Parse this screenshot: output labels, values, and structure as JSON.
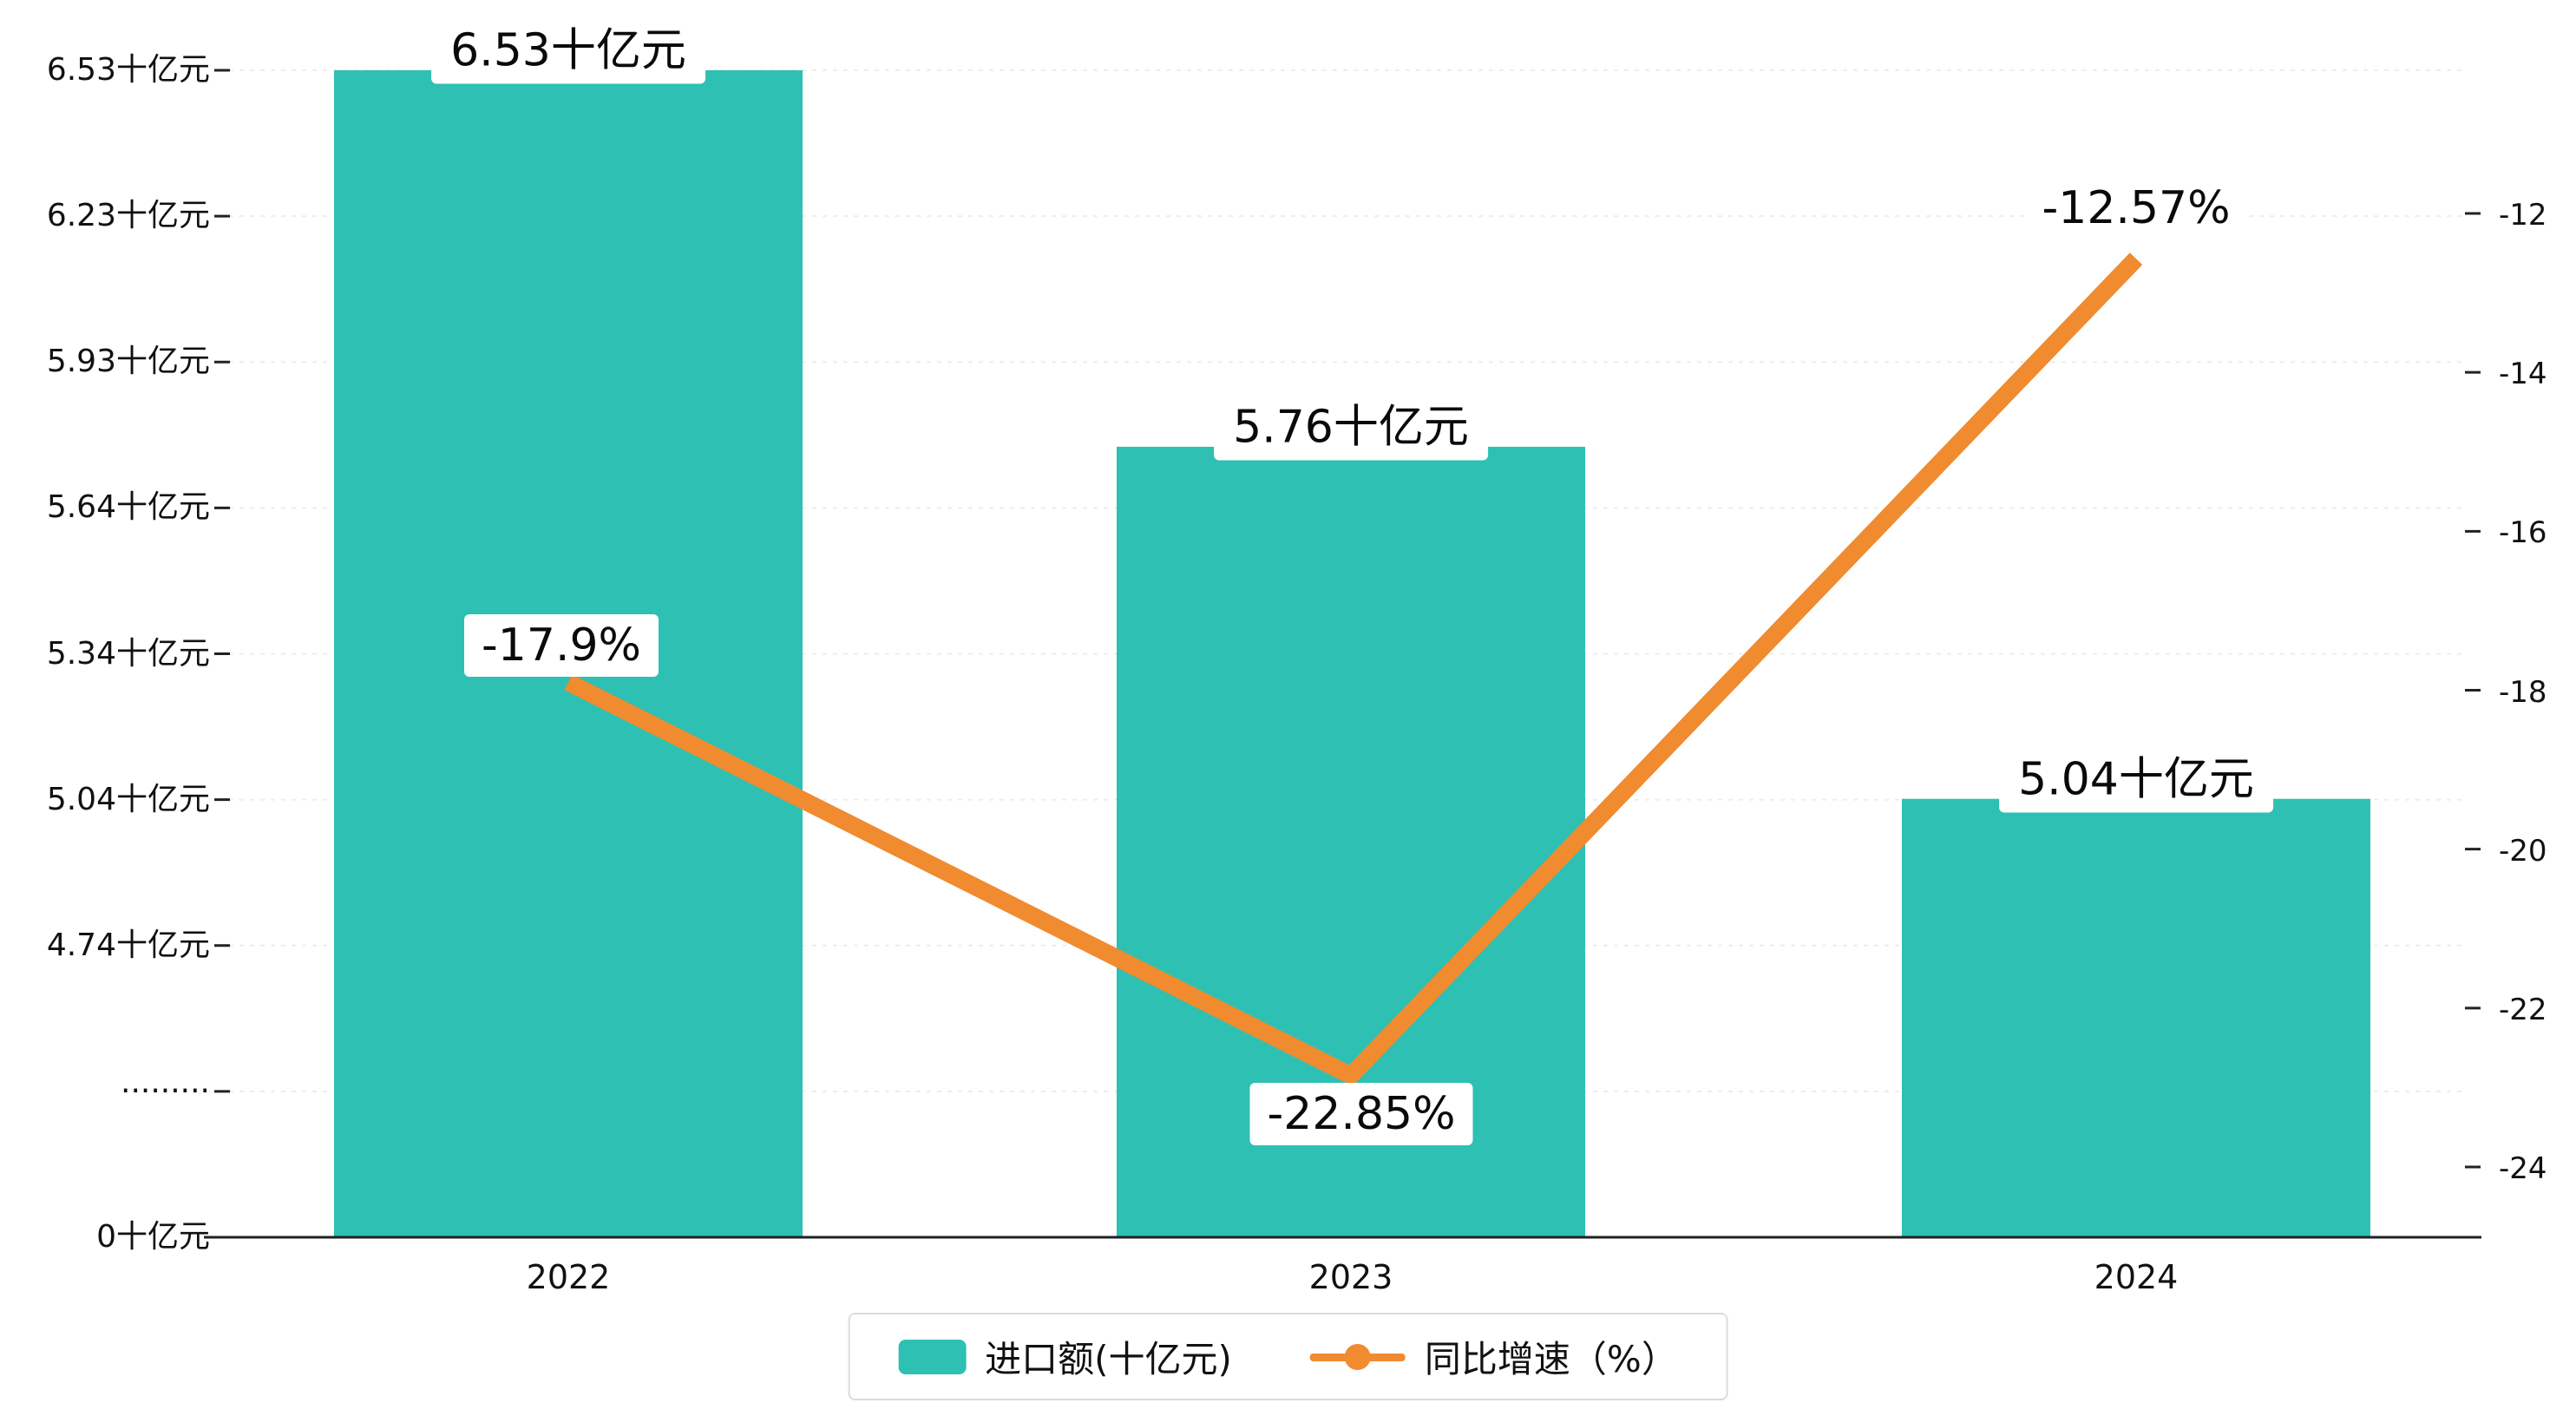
{
  "chart_data": {
    "type": "bar",
    "combo": "bar+line dual-axis",
    "categories": [
      "2022",
      "2023",
      "2024"
    ],
    "series": [
      {
        "name": "进口额(十亿元)",
        "type": "bar",
        "axis": "left",
        "unit": "十亿元",
        "values": [
          6.53,
          5.76,
          5.04
        ],
        "labels": [
          "6.53十亿元",
          "5.76十亿元",
          "5.04十亿元"
        ],
        "color": "#2ec0b2"
      },
      {
        "name": "同比增速（%）",
        "type": "line",
        "axis": "right",
        "unit": "%",
        "values": [
          -17.9,
          -22.85,
          -12.57
        ],
        "labels": [
          "-17.9%",
          "-22.85%",
          "-12.57%"
        ],
        "color": "#f08b30"
      }
    ],
    "left_axis": {
      "tick_labels": [
        "6.53十亿元",
        "6.23十亿元",
        "5.93十亿元",
        "5.64十亿元",
        "5.34十亿元",
        "5.04十亿元",
        "4.74十亿元",
        "·········",
        "0十亿元"
      ],
      "tick_values": [
        6.53,
        6.23,
        5.93,
        5.64,
        5.34,
        5.04,
        4.74,
        null,
        0
      ],
      "axis_break": true
    },
    "right_axis": {
      "tick_labels": [
        "-12",
        "-14",
        "-16",
        "-18",
        "-20",
        "-22",
        "-24"
      ],
      "tick_values": [
        -12,
        -14,
        -16,
        -18,
        -20,
        -22,
        -24
      ],
      "range": [
        -24,
        -12
      ]
    },
    "legend_position": "bottom-center",
    "grid": "dotted horizontal lines",
    "background_color": "#ffffff",
    "text_color": "#111111",
    "axis_color": "#222222",
    "grid_color": "#ececec"
  }
}
